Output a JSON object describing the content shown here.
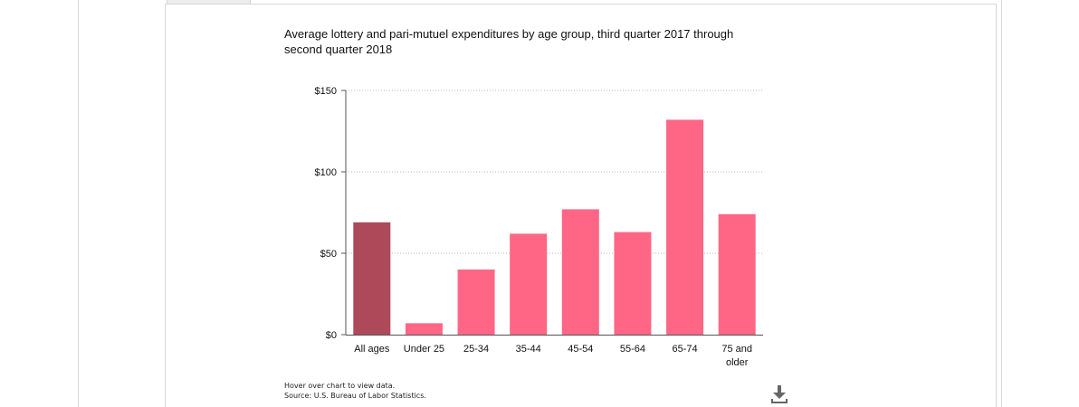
{
  "chart_data": {
    "type": "bar",
    "title": "Average lottery and pari-mutuel expenditures by age group, third quarter 2017 through second quarter 2018",
    "categories": [
      "All ages",
      "Under 25",
      "25-34",
      "35-44",
      "45-54",
      "55-64",
      "65-74",
      "75 and older"
    ],
    "category_lines": [
      [
        "All ages"
      ],
      [
        "Under 25"
      ],
      [
        "25-34"
      ],
      [
        "35-44"
      ],
      [
        "45-54"
      ],
      [
        "55-64"
      ],
      [
        "65-74"
      ],
      [
        "75 and",
        "older"
      ]
    ],
    "values": [
      69,
      7,
      40,
      62,
      77,
      63,
      132,
      74
    ],
    "highlight_index": 0,
    "yticks": [
      0,
      50,
      100,
      150
    ],
    "ytick_labels": [
      "$0",
      "$50",
      "$100",
      "$150"
    ],
    "ylim": [
      0,
      150
    ],
    "xlabel": "",
    "ylabel": "",
    "grid": true,
    "colors": {
      "bar": "#ff6685",
      "highlight": "#ad4959",
      "grid": "#b8b8b8",
      "axis": "#555555"
    }
  },
  "notes": {
    "hover": "Hover over chart to view data.",
    "source": "Source: U.S. Bureau of Labor Statistics."
  },
  "icons": {
    "download": "download-icon"
  }
}
